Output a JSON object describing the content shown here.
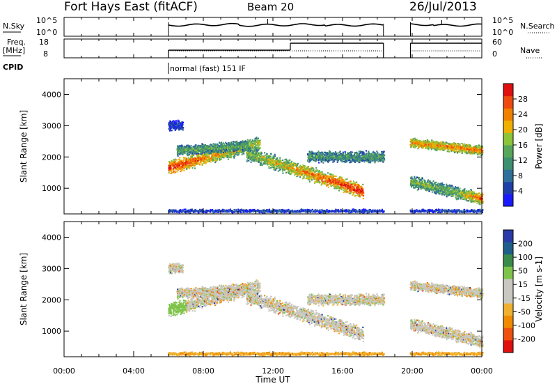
{
  "header": {
    "title": "Fort Hays East (fitACF)",
    "beam": "Beam 20",
    "date": "26/Jul/2013"
  },
  "top_panels": {
    "nsky_label": "N.Sky",
    "nsky_ticks": [
      "10^5",
      "10^0"
    ],
    "nsearch_label": "N.Search",
    "nsearch_ticks": [
      "10^5",
      "10^0"
    ],
    "freq_label_1": "Freq.",
    "freq_label_2": "[MHz]",
    "freq_ticks": [
      "18",
      "8"
    ],
    "nave_label": "Nave",
    "nave_ticks": [
      "60",
      "0"
    ],
    "cpid_label": "CPID",
    "cpid_value": "normal (fast) 151 IF"
  },
  "colors": {
    "power_scale": [
      "#1a1aff",
      "#1f3fa8",
      "#2f6f9a",
      "#3e8f6f",
      "#58a65a",
      "#8cc43a",
      "#f0b000",
      "#f08000",
      "#ee4a10",
      "#e01010"
    ],
    "velocity_scale": [
      "#2a3aa8",
      "#1f5f8a",
      "#3a8a4a",
      "#7fc44a",
      "#c8c8c0",
      "#c8c8c0",
      "#f0b030",
      "#f08a00",
      "#ee5010",
      "#e01010"
    ]
  },
  "chart_data": [
    {
      "type": "heatmap",
      "name_label": "Power",
      "ylabel": "Slant Range [km]",
      "xlabel": "Time UT",
      "x_ticks": [
        "00:00",
        "04:00",
        "08:00",
        "12:00",
        "16:00",
        "20:00",
        "00:00"
      ],
      "x_range_hours": [
        0,
        24
      ],
      "y_ticks": [
        "1000",
        "2000",
        "3000",
        "4000"
      ],
      "y_range_km": [
        180,
        4500
      ],
      "colorbar_label": "Power [dB]",
      "colorbar_ticks": [
        "4",
        "8",
        "12",
        "16",
        "20",
        "24",
        "28"
      ],
      "colorbar_range": [
        0,
        30
      ]
    },
    {
      "type": "heatmap",
      "name_label": "Velocity",
      "ylabel": "Slant Range [km]",
      "xlabel": "Time UT",
      "x_ticks": [
        "00:00",
        "04:00",
        "08:00",
        "12:00",
        "16:00",
        "20:00",
        "00:00"
      ],
      "x_range_hours": [
        0,
        24
      ],
      "y_ticks": [
        "1000",
        "2000",
        "3000",
        "4000"
      ],
      "y_range_km": [
        180,
        4500
      ],
      "colorbar_label": "Velocity [m s-1]",
      "colorbar_ticks": [
        "200",
        "100",
        "50",
        "15",
        "-15",
        "-50",
        "-100",
        "-200"
      ]
    }
  ],
  "bottom": {
    "xlabel": "Time UT"
  }
}
